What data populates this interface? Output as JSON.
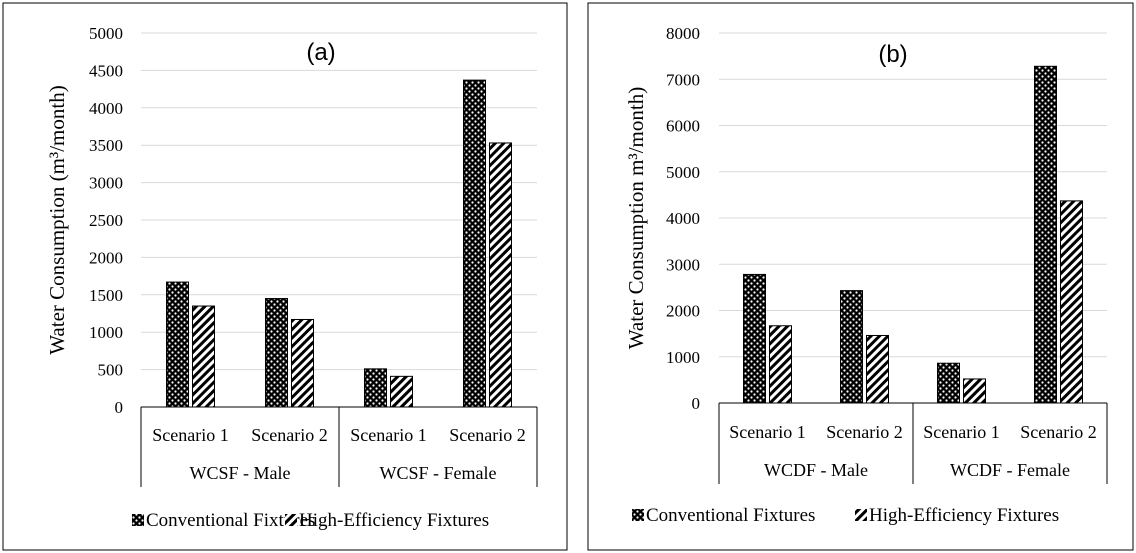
{
  "legend": [
    "Conventional Fixtures",
    "High-Efficiency Fixtures"
  ],
  "chart_data": [
    {
      "type": "bar",
      "panel_label": "(a)",
      "ylabel": "Water Consumption (m³/month)",
      "ylim": [
        0,
        5000
      ],
      "yticks": [
        "0",
        "500",
        "1000",
        "1500",
        "2000",
        "2500",
        "3000",
        "3500",
        "4000",
        "4500",
        "5000"
      ],
      "groups": [
        "WCSF - Male",
        "WCSF - Female"
      ],
      "categories": [
        "Scenario 1",
        "Scenario 2",
        "Scenario 1",
        "Scenario 2"
      ],
      "series": [
        {
          "name": "Conventional Fixtures",
          "values": [
            1670,
            1450,
            510,
            4370
          ]
        },
        {
          "name": "High-Efficiency Fixtures",
          "values": [
            1350,
            1170,
            410,
            3530
          ]
        }
      ],
      "grid": true,
      "legend_position": "bottom"
    },
    {
      "type": "bar",
      "panel_label": "(b)",
      "ylabel": "Water Consumption m³/month)",
      "ylim": [
        0,
        8000
      ],
      "yticks": [
        "0",
        "1000",
        "2000",
        "3000",
        "4000",
        "5000",
        "6000",
        "7000",
        "8000"
      ],
      "groups": [
        "WCDF - Male",
        "WCDF - Female"
      ],
      "categories": [
        "Scenario 1",
        "Scenario 2",
        "Scenario 1",
        "Scenario 2"
      ],
      "series": [
        {
          "name": "Conventional Fixtures",
          "values": [
            2780,
            2430,
            860,
            7280
          ]
        },
        {
          "name": "High-Efficiency Fixtures",
          "values": [
            1670,
            1460,
            520,
            4370
          ]
        }
      ],
      "grid": true,
      "legend_position": "bottom"
    }
  ]
}
